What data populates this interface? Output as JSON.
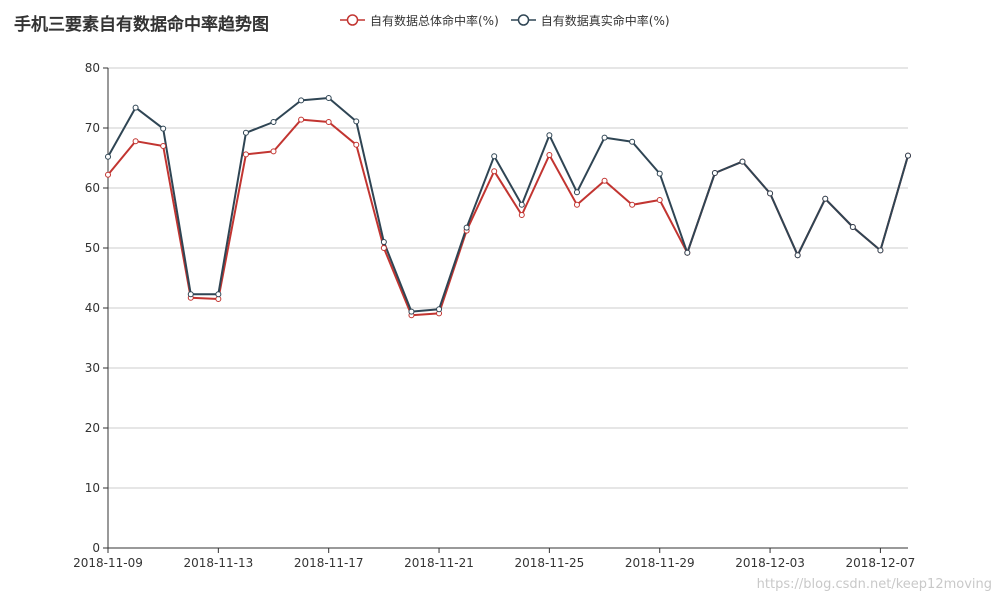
{
  "chart_data": {
    "type": "line",
    "title": "手机三要素自有数据命中率趋势图",
    "xlabel": "",
    "ylabel": "",
    "ylim": [
      0,
      80
    ],
    "yticks": [
      0,
      10,
      20,
      30,
      40,
      50,
      60,
      70,
      80
    ],
    "grid": true,
    "legend_position": "top",
    "x_tick_labels": [
      "2018-11-09",
      "2018-11-13",
      "2018-11-17",
      "2018-11-21",
      "2018-11-25",
      "2018-11-29",
      "2018-12-03",
      "2018-12-07"
    ],
    "x": [
      "2018-11-09",
      "2018-11-10",
      "2018-11-11",
      "2018-11-12",
      "2018-11-13",
      "2018-11-14",
      "2018-11-15",
      "2018-11-16",
      "2018-11-17",
      "2018-11-18",
      "2018-11-19",
      "2018-11-20",
      "2018-11-21",
      "2018-11-22",
      "2018-11-23",
      "2018-11-24",
      "2018-11-25",
      "2018-11-26",
      "2018-11-27",
      "2018-11-28",
      "2018-11-29",
      "2018-11-30",
      "2018-12-01",
      "2018-12-02",
      "2018-12-03",
      "2018-12-04",
      "2018-12-05",
      "2018-12-06",
      "2018-12-07",
      "2018-12-08"
    ],
    "series": [
      {
        "name": "自有数据总体命中率(%)",
        "color": "#c23531",
        "values": [
          62.2,
          67.8,
          67.0,
          41.7,
          41.5,
          65.6,
          66.1,
          71.4,
          71.0,
          67.2,
          50.0,
          38.8,
          39.1,
          52.9,
          62.8,
          55.5,
          65.5,
          57.2,
          61.2,
          57.2,
          58.0,
          49.2,
          62.5,
          64.4,
          59.1,
          48.8,
          58.2,
          53.5,
          49.6,
          65.4
        ]
      },
      {
        "name": "自有数据真实命中率(%)",
        "color": "#2f4554",
        "values": [
          65.2,
          73.4,
          69.9,
          42.3,
          42.3,
          69.2,
          71.0,
          74.6,
          75.0,
          71.1,
          51.0,
          39.4,
          39.8,
          53.4,
          65.3,
          57.2,
          68.8,
          59.3,
          68.4,
          67.7,
          62.4,
          49.2,
          62.5,
          64.4,
          59.1,
          48.8,
          58.2,
          53.5,
          49.6,
          65.4
        ]
      }
    ]
  },
  "watermark": "https://blog.csdn.net/keep12moving"
}
